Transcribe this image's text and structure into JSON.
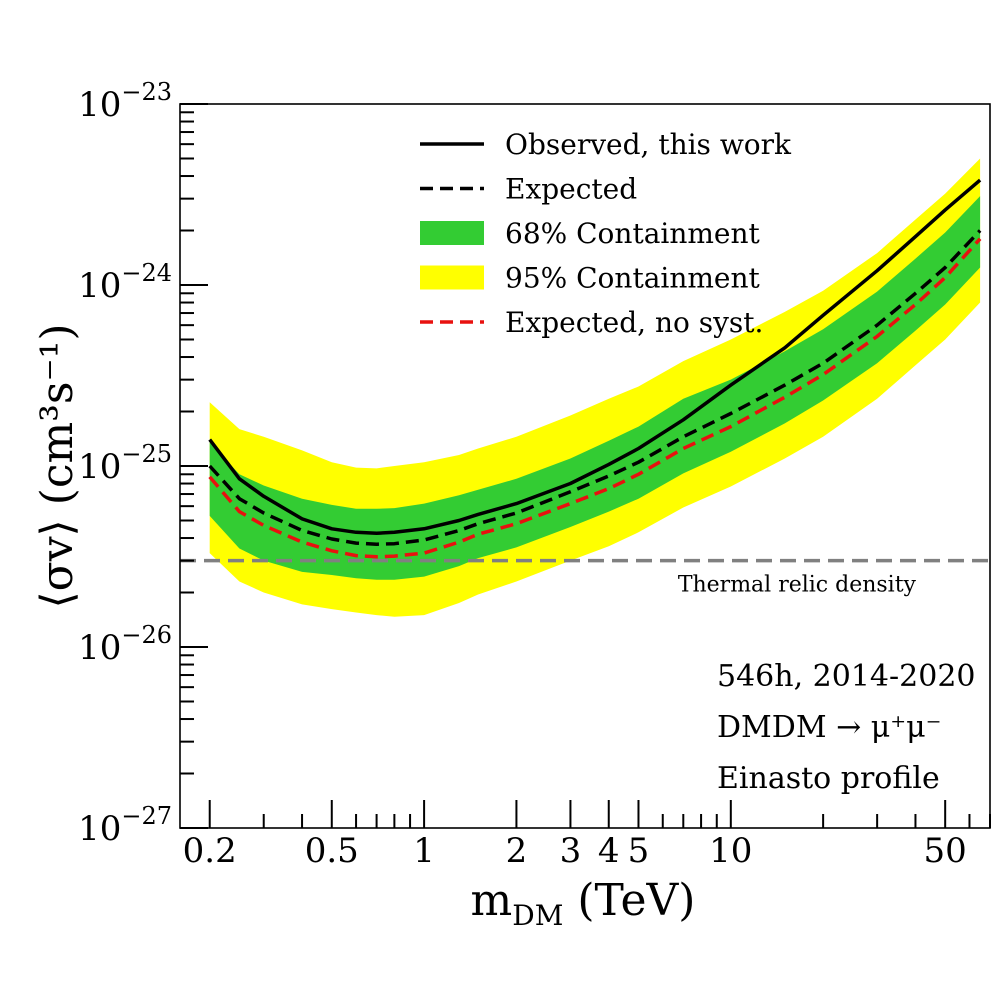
{
  "chart_data": {
    "type": "line",
    "xscale": "log",
    "yscale": "log",
    "xlim": [
      0.16,
      70
    ],
    "ylim": [
      1e-27,
      1e-23
    ],
    "xlabel": "m",
    "xlabel_sub": "DM",
    "xlabel_unit": "(TeV)",
    "ylabel": "⟨σv⟩ (cm³s⁻¹)",
    "xticks": [
      {
        "value": 0.2,
        "label": "0.2"
      },
      {
        "value": 0.5,
        "label": "0.5"
      },
      {
        "value": 1,
        "label": "1"
      },
      {
        "value": 2,
        "label": "2"
      },
      {
        "value": 3,
        "label": "3"
      },
      {
        "value": 4,
        "label": "4"
      },
      {
        "value": 5,
        "label": "5"
      },
      {
        "value": 10,
        "label": "10"
      },
      {
        "value": 50,
        "label": "50"
      }
    ],
    "yticks": [
      {
        "value": 1e-23,
        "label": "10",
        "exp": "−23"
      },
      {
        "value": 1e-24,
        "label": "10",
        "exp": "−24"
      },
      {
        "value": 1e-25,
        "label": "10",
        "exp": "−25"
      },
      {
        "value": 1e-26,
        "label": "10",
        "exp": "−26"
      },
      {
        "value": 1e-27,
        "label": "10",
        "exp": "−27"
      }
    ],
    "x": [
      0.2,
      0.25,
      0.3,
      0.4,
      0.5,
      0.6,
      0.7,
      0.8,
      1.0,
      1.3,
      1.5,
      2.0,
      3.0,
      4.0,
      5.0,
      7.0,
      10.0,
      15.0,
      20.0,
      30.0,
      40.0,
      50.0,
      65.0
    ],
    "series": [
      {
        "name": "Observed, this work",
        "style": "solid",
        "color": "#000000",
        "values": [
          1.4e-25,
          8.5e-26,
          6.8e-26,
          5.1e-26,
          4.5e-26,
          4.3e-26,
          4.25e-26,
          4.3e-26,
          4.5e-26,
          5e-26,
          5.4e-26,
          6.2e-26,
          8e-26,
          1.02e-25,
          1.25e-25,
          1.8e-25,
          2.8e-25,
          4.5e-25,
          6.8e-25,
          1.2e-24,
          1.85e-24,
          2.6e-24,
          3.8e-24
        ]
      },
      {
        "name": "Expected",
        "style": "dashed",
        "color": "#000000",
        "values": [
          1e-25,
          6.6e-26,
          5.5e-26,
          4.4e-26,
          3.95e-26,
          3.75e-26,
          3.7e-26,
          3.72e-26,
          3.9e-26,
          4.4e-26,
          4.8e-26,
          5.5e-26,
          7.2e-26,
          8.8e-26,
          1.05e-25,
          1.45e-25,
          1.95e-25,
          2.8e-25,
          3.7e-25,
          6e-25,
          9e-25,
          1.25e-24,
          2e-24
        ]
      },
      {
        "name": "Expected, no syst.",
        "style": "dashed",
        "color": "#e8110f",
        "values": [
          8.7e-26,
          5.6e-26,
          4.7e-26,
          3.8e-26,
          3.4e-26,
          3.2e-26,
          3.15e-26,
          3.18e-26,
          3.3e-26,
          3.8e-26,
          4.2e-26,
          4.8e-26,
          6.2e-26,
          7.5e-26,
          9e-26,
          1.25e-25,
          1.65e-25,
          2.4e-25,
          3.2e-25,
          5.2e-25,
          7.8e-25,
          1.1e-24,
          1.8e-24
        ]
      }
    ],
    "bands": [
      {
        "name": "95% Containment",
        "color": "#ffff00",
        "upper": [
          2.25e-25,
          1.6e-25,
          1.45e-25,
          1.22e-25,
          1.05e-25,
          9.8e-26,
          9.7e-26,
          1e-25,
          1.05e-25,
          1.15e-25,
          1.25e-25,
          1.45e-25,
          1.9e-25,
          2.35e-25,
          2.75e-25,
          3.8e-25,
          5e-25,
          7.1e-25,
          9.3e-25,
          1.5e-24,
          2.3e-24,
          3.2e-24,
          5e-24
        ],
        "lower": [
          3.3e-26,
          2.3e-26,
          2e-26,
          1.72e-26,
          1.62e-26,
          1.55e-26,
          1.5e-26,
          1.47e-26,
          1.5e-26,
          1.75e-26,
          1.95e-26,
          2.3e-26,
          3e-26,
          3.6e-26,
          4.3e-26,
          5.9e-26,
          7.7e-26,
          1.1e-25,
          1.45e-25,
          2.35e-25,
          3.6e-25,
          5e-25,
          8e-25
        ]
      },
      {
        "name": "68% Containment",
        "color": "#33cc33",
        "upper": [
          1.35e-25,
          9e-26,
          7.8e-26,
          6.6e-26,
          6.1e-26,
          5.8e-26,
          5.8e-26,
          5.85e-26,
          6.2e-26,
          6.9e-26,
          7.4e-26,
          8.5e-26,
          1.1e-25,
          1.38e-25,
          1.65e-25,
          2.35e-25,
          3e-25,
          4.3e-25,
          5.7e-25,
          9.2e-25,
          1.4e-24,
          1.95e-24,
          3.1e-24
        ],
        "lower": [
          5.3e-26,
          3.5e-26,
          3e-26,
          2.6e-26,
          2.5e-26,
          2.4e-26,
          2.35e-26,
          2.35e-26,
          2.45e-26,
          2.8e-26,
          3.1e-26,
          3.55e-26,
          4.6e-26,
          5.6e-26,
          6.6e-26,
          9.1e-26,
          1.2e-25,
          1.72e-25,
          2.3e-25,
          3.7e-25,
          5.6e-25,
          7.8e-25,
          1.25e-24
        ]
      }
    ],
    "reference_line": {
      "name": "Thermal relic density",
      "value": 3e-26,
      "color": "#808080",
      "style": "dashed"
    },
    "legend": {
      "placement": "top-center",
      "entries": [
        {
          "label": "Observed, this work",
          "kind": "line-solid",
          "color": "#000000"
        },
        {
          "label": "Expected",
          "kind": "line-dashed",
          "color": "#000000"
        },
        {
          "label": "68% Containment",
          "kind": "patch",
          "color": "#33cc33"
        },
        {
          "label": "95% Containment",
          "kind": "patch",
          "color": "#ffff00"
        },
        {
          "label": "Expected, no syst.",
          "kind": "line-dashed",
          "color": "#e8110f"
        }
      ]
    },
    "annotations": [
      "546h, 2014-2020",
      "DMDM → μ⁺μ⁻",
      "Einasto profile"
    ],
    "grid": false
  }
}
